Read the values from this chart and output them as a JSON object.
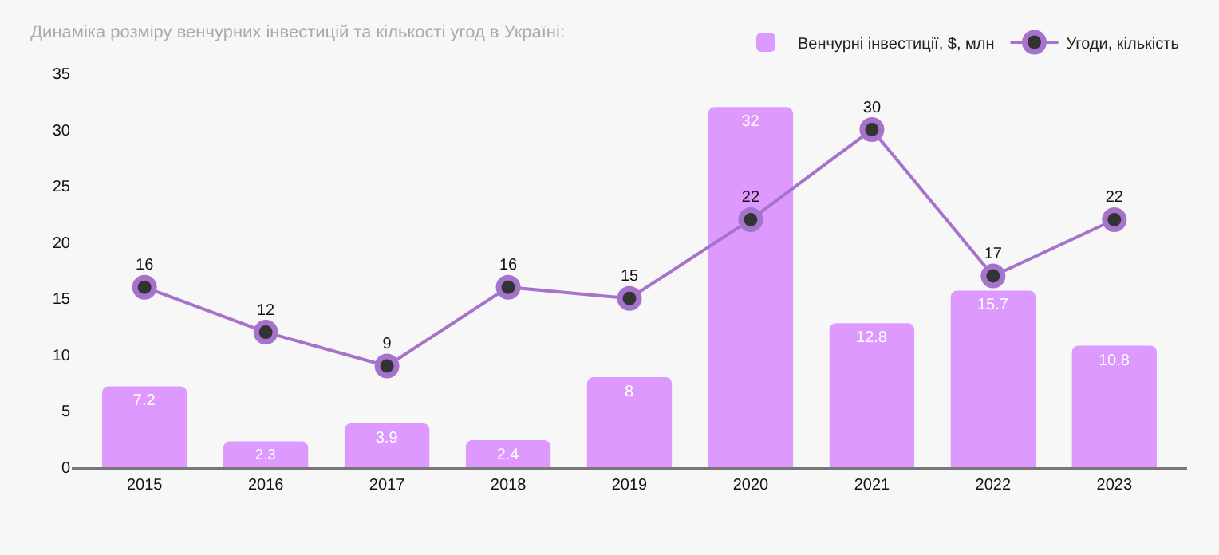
{
  "chart_data": {
    "type": "bar",
    "title": "Динаміка розміру венчурних інвестицій та кількості угод в Україні:",
    "categories": [
      "2015",
      "2016",
      "2017",
      "2018",
      "2019",
      "2020",
      "2021",
      "2022",
      "2023"
    ],
    "series": [
      {
        "name": "Венчурні інвестиції, $, млн",
        "color": "#dd99fd",
        "values": [
          7.2,
          2.3,
          3.9,
          2.4,
          8,
          32,
          12.8,
          15.7,
          10.8
        ]
      },
      {
        "name": "Угоди, кількість",
        "type": "line",
        "color": "#a673cc",
        "marker": "circle",
        "values": [
          16,
          12,
          9,
          16,
          15,
          22,
          30,
          17,
          22
        ]
      }
    ],
    "ylim": [
      0,
      35
    ],
    "yticks": [
      0,
      5,
      10,
      15,
      20,
      25,
      30,
      35
    ],
    "data_labels": true,
    "grid": false,
    "legend": "top right"
  }
}
